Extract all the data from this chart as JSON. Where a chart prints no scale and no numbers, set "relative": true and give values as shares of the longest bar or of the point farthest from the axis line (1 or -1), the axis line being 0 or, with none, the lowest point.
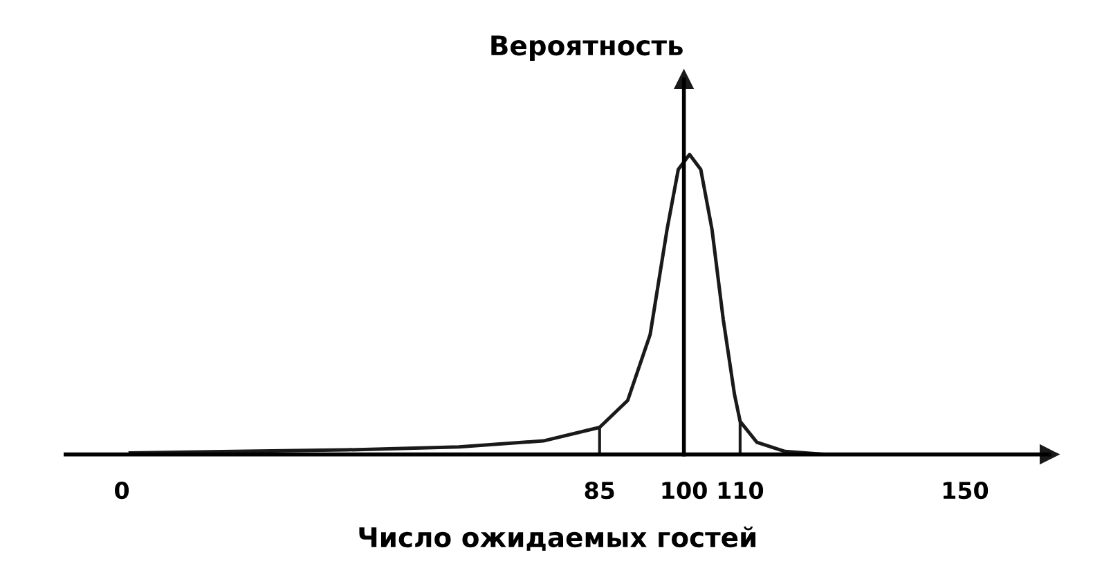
{
  "chart_data": {
    "type": "line",
    "relative": true,
    "xlabel": "Число ожидаемых гостей",
    "ylabel": "Вероятность",
    "x": [
      1.5,
      20,
      40,
      60,
      75,
      85,
      90,
      94,
      97,
      99,
      101,
      103,
      105,
      107,
      109,
      110,
      113,
      118,
      125
    ],
    "series": [
      {
        "color": "#1a1a1a",
        "values": [
          0.005,
          0.01,
          0.015,
          0.025,
          0.045,
          0.09,
          0.18,
          0.4,
          0.75,
          0.95,
          1,
          0.95,
          0.75,
          0.45,
          0.2,
          0.11,
          0.04,
          0.01,
          0
        ]
      }
    ],
    "xlim": [
      -10,
      165
    ],
    "xticks": [
      0,
      85,
      100,
      110,
      150
    ],
    "tick_labels": "x",
    "legend": false,
    "marker": "none",
    "line_style": "solid",
    "ref_lines": [
      {
        "axis": "x",
        "value": 85
      },
      {
        "axis": "x",
        "value": 110
      }
    ]
  }
}
